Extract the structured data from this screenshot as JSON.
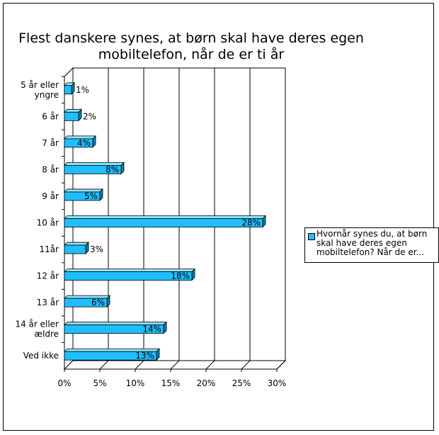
{
  "chart_data": {
    "type": "bar",
    "orientation": "horizontal",
    "title": "Flest danskere synes, at børn skal have deres egen\nmobiltelefon, når de er ti år",
    "categories": [
      "5 år eller yngre",
      "6 år",
      "7 år",
      "8 år",
      "9 år",
      "10 år",
      "11år",
      "12 år",
      "13 år",
      "14 år eller ældre",
      "Ved ikke"
    ],
    "category_lines": [
      [
        "5 år eller",
        "yngre"
      ],
      [
        "6 år"
      ],
      [
        "7 år"
      ],
      [
        "8 år"
      ],
      [
        "9 år"
      ],
      [
        "10 år"
      ],
      [
        "11år"
      ],
      [
        "12 år"
      ],
      [
        "13 år"
      ],
      [
        "14 år eller",
        "ældre"
      ],
      [
        "Ved ikke"
      ]
    ],
    "series": [
      {
        "name": "Hvornår synes du, at børn skal have deres egen mobiltelefon? Når de er...",
        "values": [
          1,
          2,
          4,
          8,
          5,
          28,
          3,
          18,
          6,
          14,
          13
        ],
        "labels": [
          "1%",
          "2%",
          "4%",
          "8%",
          "5%",
          "28%",
          "3%",
          "18%",
          "6%",
          "14%",
          "13%"
        ],
        "color": "#1FBFFF"
      }
    ],
    "xlim": [
      0,
      30
    ],
    "xticks": [
      "0%",
      "5%",
      "10%",
      "15%",
      "20%",
      "25%",
      "30%"
    ],
    "grid": true,
    "legend_position": "right",
    "xlabel": "",
    "ylabel": ""
  },
  "legend": {
    "text": "Hvornår synes du, at børn skal have deres egen mobiltelefon? Når de er..."
  }
}
